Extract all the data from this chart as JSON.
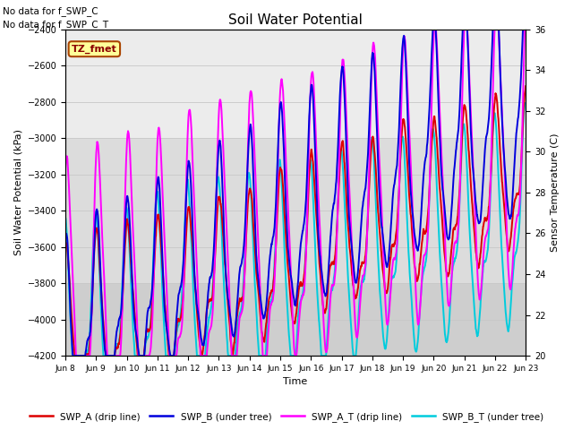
{
  "title": "Soil Water Potential",
  "xlabel": "Time",
  "ylabel_left": "Soil Water Potential (kPa)",
  "ylabel_right": "Sensor Temperature (C)",
  "subtitle_lines": [
    "No data for f_SWP_C",
    "No data for f_SWP_C_T"
  ],
  "annotation": "TZ_fmet",
  "ylim_left": [
    -4200,
    -2400
  ],
  "ylim_right": [
    20,
    36
  ],
  "background_color": "#ffffff",
  "plot_bg_color": "#e0e0e0",
  "shaded_band_light": [
    -3000,
    -2400
  ],
  "shaded_band_mid": [
    -3800,
    -3000
  ],
  "legend_entries": [
    {
      "label": "SWP_A (drip line)",
      "color": "#dd0000"
    },
    {
      "label": "SWP_B (under tree)",
      "color": "#0000dd"
    },
    {
      "label": "SWP_A_T (drip line)",
      "color": "#ff00ff"
    },
    {
      "label": "SWP_B_T (under tree)",
      "color": "#00ccdd"
    }
  ],
  "x_tick_labels": [
    "Jun 8",
    "Jun 9",
    "Jun 10",
    "Jun 11",
    "Jun 12",
    "Jun 13",
    "Jun 14",
    "Jun 15",
    "Jun 16",
    "Jun 17",
    "Jun 18",
    "Jun 19",
    "Jun 20",
    "Jun 21",
    "Jun 22",
    "Jun 23"
  ],
  "swp_a_color": "#dd0000",
  "swp_b_color": "#0000dd",
  "swp_at_color": "#ff00ff",
  "swp_bt_color": "#00ccdd",
  "grid_color": "#c8c8c8"
}
